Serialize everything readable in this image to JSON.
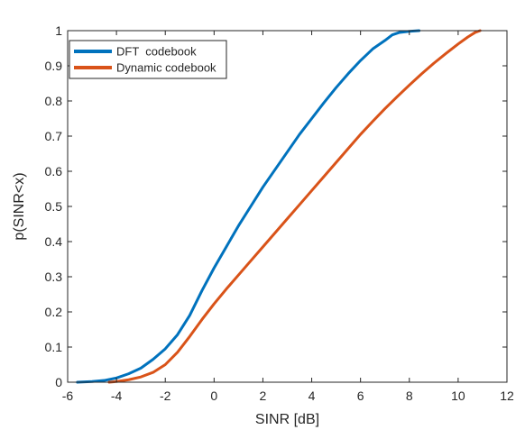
{
  "chart_data": {
    "type": "line",
    "title": "",
    "xlabel": "SINR [dB]",
    "ylabel": "p(SINR<x)",
    "xlim": [
      -6,
      12
    ],
    "ylim": [
      0,
      1
    ],
    "xticks": [
      -6,
      -4,
      -2,
      0,
      2,
      4,
      6,
      8,
      10,
      12
    ],
    "yticks": [
      0,
      0.1,
      0.2,
      0.3,
      0.4,
      0.5,
      0.6,
      0.7,
      0.8,
      0.9,
      1
    ],
    "xtick_labels": [
      "-6",
      "-4",
      "-2",
      "0",
      "2",
      "4",
      "6",
      "8",
      "10",
      "12"
    ],
    "ytick_labels": [
      "0",
      "0.1",
      "0.2",
      "0.3",
      "0.4",
      "0.5",
      "0.6",
      "0.7",
      "0.8",
      "0.9",
      "1"
    ],
    "grid": false,
    "legend_position": "top-left",
    "series": [
      {
        "name": "DFT  codebook",
        "color": "#0072BD",
        "x": [
          -5.6,
          -5.0,
          -4.5,
          -4.0,
          -3.5,
          -3.0,
          -2.5,
          -2.0,
          -1.5,
          -1.0,
          -0.5,
          0.0,
          0.5,
          1.0,
          1.5,
          2.0,
          2.5,
          3.0,
          3.5,
          4.0,
          4.5,
          5.0,
          5.5,
          6.0,
          6.5,
          7.0,
          7.3,
          7.6,
          8.0,
          8.4
        ],
        "y": [
          0.0,
          0.002,
          0.005,
          0.012,
          0.024,
          0.04,
          0.065,
          0.095,
          0.135,
          0.19,
          0.26,
          0.325,
          0.385,
          0.445,
          0.5,
          0.555,
          0.605,
          0.655,
          0.705,
          0.75,
          0.795,
          0.838,
          0.878,
          0.915,
          0.948,
          0.972,
          0.988,
          0.995,
          0.998,
          1.0
        ]
      },
      {
        "name": "Dynamic codebook",
        "color": "#D95319",
        "x": [
          -4.3,
          -4.0,
          -3.5,
          -3.0,
          -2.5,
          -2.0,
          -1.5,
          -1.0,
          -0.5,
          0.0,
          0.5,
          1.0,
          1.5,
          2.0,
          2.5,
          3.0,
          3.5,
          4.0,
          4.5,
          5.0,
          5.5,
          6.0,
          6.5,
          7.0,
          7.5,
          8.0,
          8.5,
          9.0,
          9.5,
          10.0,
          10.4,
          10.7,
          10.9
        ],
        "y": [
          0.0,
          0.002,
          0.007,
          0.015,
          0.028,
          0.05,
          0.085,
          0.13,
          0.178,
          0.223,
          0.265,
          0.305,
          0.345,
          0.385,
          0.425,
          0.465,
          0.505,
          0.545,
          0.585,
          0.625,
          0.665,
          0.705,
          0.742,
          0.778,
          0.812,
          0.845,
          0.877,
          0.907,
          0.935,
          0.962,
          0.982,
          0.995,
          1.0
        ]
      }
    ]
  }
}
